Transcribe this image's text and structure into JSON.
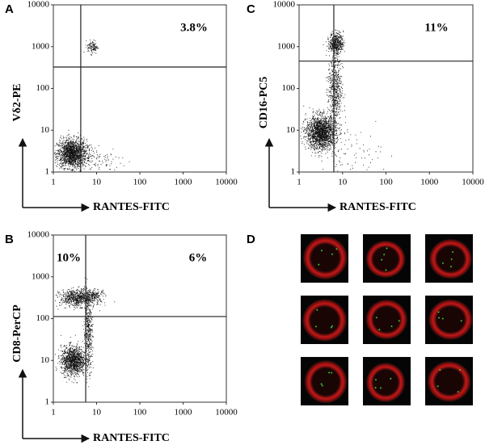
{
  "panels": [
    {
      "label": "A",
      "x_label": "RANTES-FITC",
      "y_label": "Vδ2-PE",
      "log_scale": true,
      "xlim": [
        1,
        10000
      ],
      "ylim": [
        1,
        10000
      ],
      "xticks": [
        1,
        10,
        100,
        1000,
        10000
      ],
      "yticks": [
        1,
        10,
        100,
        1000,
        10000
      ],
      "gate": {
        "x": 4.3,
        "y": 325
      },
      "quadrant_labels": [
        "3.8%"
      ]
    },
    {
      "label": "B",
      "x_label": "RANTES-FITC",
      "y_label": "CD8-PerCP",
      "log_scale": true,
      "xlim": [
        1,
        10000
      ],
      "ylim": [
        1,
        10000
      ],
      "xticks": [
        1,
        10,
        100,
        1000,
        10000
      ],
      "yticks": [
        1,
        10,
        100,
        1000,
        10000
      ],
      "gate": {
        "x": 5.6,
        "y": 112
      },
      "quadrant_labels": [
        "10%",
        "6%"
      ]
    },
    {
      "label": "C",
      "x_label": "RANTES-FITC",
      "y_label": "CD16-PC5",
      "log_scale": true,
      "xlim": [
        1,
        10000
      ],
      "ylim": [
        1,
        10000
      ],
      "xticks": [
        1,
        10,
        100,
        1000,
        10000
      ],
      "yticks": [
        1,
        10,
        100,
        1000,
        10000
      ],
      "gate": {
        "x": 6.3,
        "y": 450
      },
      "quadrant_labels": [
        "11%"
      ]
    },
    {
      "label": "D"
    }
  ]
}
